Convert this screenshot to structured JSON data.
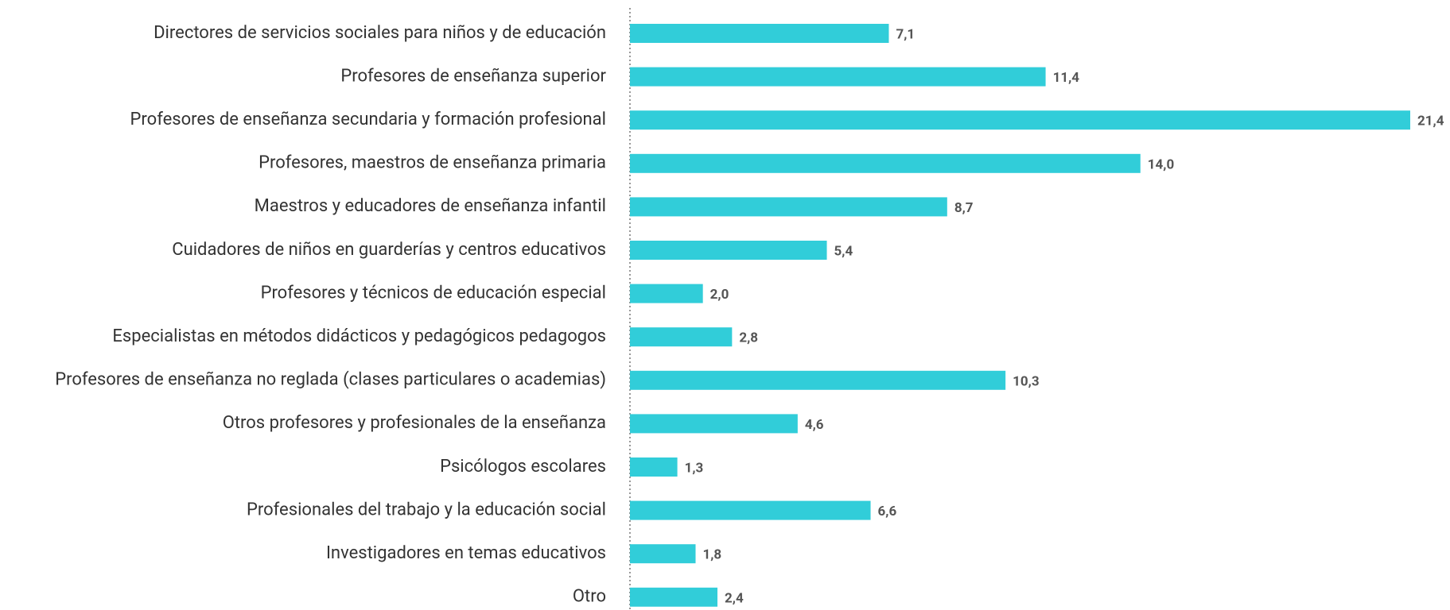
{
  "chart_data": {
    "type": "barh",
    "categories": [
      "Directores de servicios sociales para niños y de educación",
      "Profesores de enseñanza superior",
      "Profesores de enseñanza secundaria y formación profesional",
      "Profesores, maestros de enseñanza primaria",
      "Maestros y educadores de enseñanza infantil",
      "Cuidadores de niños en guarderías y centros educativos",
      "Profesores y técnicos de educación especial",
      "Especialistas en métodos didácticos y pedagógicos pedagogos",
      "Profesores de enseñanza no reglada (clases particulares o academias)",
      "Otros profesores y profesionales de la enseñanza",
      "Psicólogos escolares",
      "Profesionales del trabajo y la educación social",
      "Investigadores en temas educativos",
      "Otro"
    ],
    "values": [
      7.1,
      11.4,
      21.4,
      14.0,
      8.7,
      5.4,
      2.0,
      2.8,
      10.3,
      4.6,
      1.3,
      6.6,
      1.8,
      2.4
    ],
    "value_labels": [
      "7,1",
      "11,4",
      "21,4",
      "14,0",
      "8,7",
      "5,4",
      "2,0",
      "2,8",
      "10,3",
      "4,6",
      "1,3",
      "6,6",
      "1,8",
      "2,4"
    ],
    "color": "#31cdd9"
  }
}
